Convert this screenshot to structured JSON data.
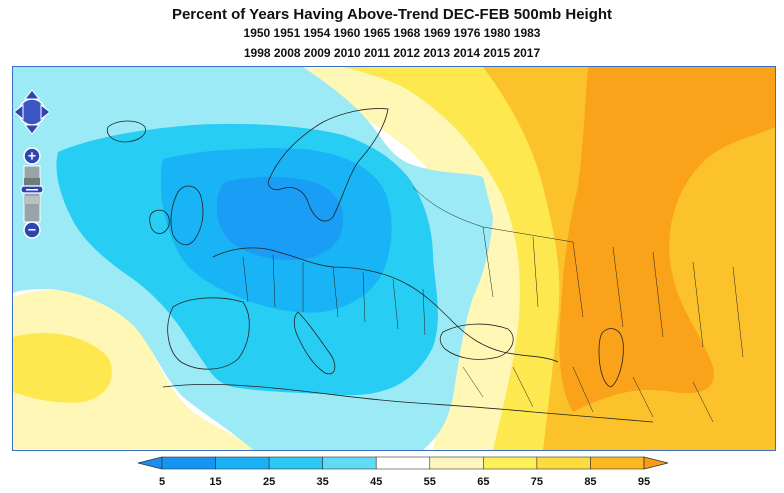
{
  "title": "Percent of Years Having Above-Trend DEC-FEB 500mb Height",
  "years_line1": "1950 1951 1954 1960 1965 1968 1969 1976 1980 1983",
  "years_line2": "1998 2008 2009 2010 2011 2012 2013 2014 2015 2017",
  "map": {
    "region": "Europe and surrounding areas",
    "palette": {
      "5-15": "#1a9df4",
      "15-25": "#18b4f5",
      "25-35": "#28cdf3",
      "35-45": "#9ceaf5",
      "45-55": "#ffffff",
      "55-65": "#fff7b5",
      "65-75": "#fde94f",
      "75-85": "#fbc22b",
      "85-95": "#f9a21a"
    }
  },
  "controls": {
    "pan": "pan-arrows-icon",
    "zoom_in": "+",
    "zoom_out": "−"
  },
  "colorbar": {
    "ticks": [
      "5",
      "15",
      "25",
      "35",
      "45",
      "55",
      "65",
      "75",
      "85",
      "95"
    ],
    "colors": [
      "#1595f2",
      "#1ab0f5",
      "#2bc8f4",
      "#5fdcf3",
      "#ffffff",
      "#fff7c0",
      "#fef05a",
      "#fddc3e",
      "#fbb91f"
    ],
    "under_color": "#1e8ff0",
    "over_color": "#f99b16"
  }
}
